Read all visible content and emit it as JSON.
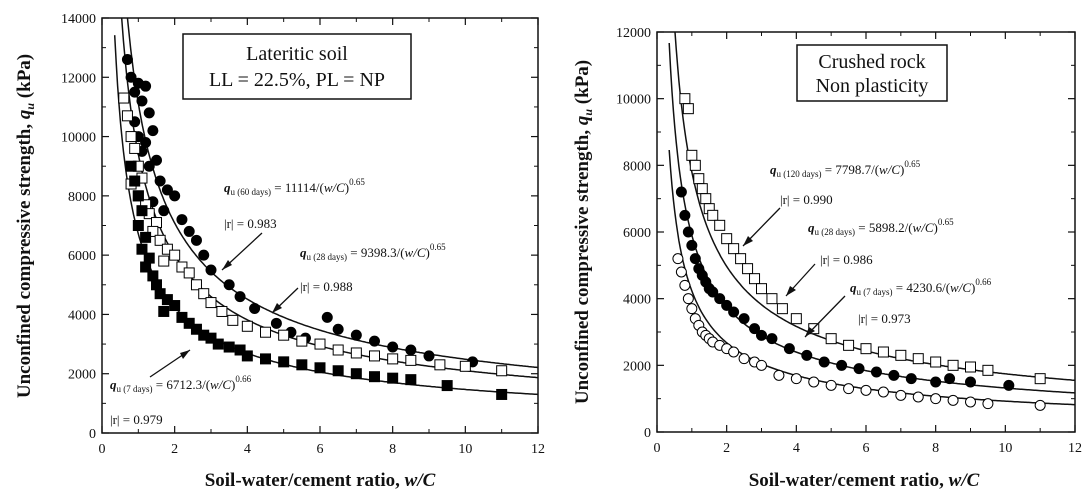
{
  "chart_data": [
    {
      "type": "scatter",
      "panel": "left",
      "legend_box": [
        "Lateritic soil",
        "LL = 22.5%, PL = NP"
      ],
      "xlabel_main": "Soil-water/cement ratio, ",
      "xlabel_var": "w/C",
      "ylabel_main": "Unconfined compressive strength, ",
      "ylabel_var": "q",
      "ylabel_sub": "u",
      "ylabel_unit": " (kPa)",
      "xlim": [
        0,
        12
      ],
      "ylim": [
        0,
        14000
      ],
      "xticks": [
        "0",
        "2",
        "4",
        "6",
        "8",
        "10",
        "12"
      ],
      "yticks": [
        "0",
        "2000",
        "4000",
        "6000",
        "8000",
        "10000",
        "12000",
        "14000"
      ],
      "curves": [
        {
          "age": "60 days",
          "a": 11114,
          "b": 0.65
        },
        {
          "age": "28 days",
          "a": 9398.3,
          "b": 0.65
        },
        {
          "age": "7 days",
          "a": 6712.3,
          "b": 0.66
        }
      ],
      "annotations": [
        {
          "q": "q",
          "sub": "u (60 days)",
          "eq": " = 11114/(",
          "var": "w/C",
          "close": ")",
          "exp": "0.65",
          "r": "|r| = 0.983"
        },
        {
          "q": "q",
          "sub": "u (28 days)",
          "eq": " = 9398.3/(",
          "var": "w/C",
          "close": ")",
          "exp": "0.65",
          "r": "|r| = 0.988"
        },
        {
          "q": "q",
          "sub": "u (7 days)",
          "eq": " = 6712.3/(",
          "var": "w/C",
          "close": ")",
          "exp": "0.66",
          "r": "|r| = 0.979"
        }
      ],
      "series": [
        {
          "marker": "filled-circle",
          "points": [
            [
              0.7,
              12600
            ],
            [
              0.8,
              12000
            ],
            [
              0.9,
              11500
            ],
            [
              1.0,
              11800
            ],
            [
              1.1,
              11200
            ],
            [
              1.2,
              11700
            ],
            [
              1.3,
              10800
            ],
            [
              1.4,
              10200
            ],
            [
              0.9,
              10500
            ],
            [
              1.0,
              10000
            ],
            [
              1.1,
              9500
            ],
            [
              1.2,
              9800
            ],
            [
              1.5,
              9200
            ],
            [
              1.3,
              9000
            ],
            [
              1.6,
              8500
            ],
            [
              1.8,
              8200
            ],
            [
              2.0,
              8000
            ],
            [
              1.4,
              7800
            ],
            [
              1.7,
              7500
            ],
            [
              2.2,
              7200
            ],
            [
              2.4,
              6800
            ],
            [
              2.6,
              6500
            ],
            [
              2.8,
              6000
            ],
            [
              3.0,
              5500
            ],
            [
              3.5,
              5000
            ],
            [
              3.8,
              4600
            ],
            [
              4.2,
              4200
            ],
            [
              4.8,
              3700
            ],
            [
              5.2,
              3400
            ],
            [
              5.6,
              3200
            ],
            [
              6.2,
              3900
            ],
            [
              6.5,
              3500
            ],
            [
              7.0,
              3300
            ],
            [
              7.5,
              3100
            ],
            [
              8.0,
              2900
            ],
            [
              8.5,
              2800
            ],
            [
              9.0,
              2600
            ],
            [
              10.2,
              2400
            ]
          ]
        },
        {
          "marker": "open-square",
          "points": [
            [
              0.6,
              11300
            ],
            [
              0.7,
              10700
            ],
            [
              0.8,
              10000
            ],
            [
              0.9,
              9600
            ],
            [
              1.0,
              9000
            ],
            [
              1.1,
              8600
            ],
            [
              0.8,
              8400
            ],
            [
              1.0,
              8000
            ],
            [
              1.2,
              7700
            ],
            [
              1.3,
              7400
            ],
            [
              1.5,
              7100
            ],
            [
              1.4,
              6800
            ],
            [
              1.6,
              6500
            ],
            [
              1.8,
              6200
            ],
            [
              2.0,
              6000
            ],
            [
              1.7,
              5800
            ],
            [
              2.2,
              5600
            ],
            [
              2.4,
              5400
            ],
            [
              2.6,
              5000
            ],
            [
              2.8,
              4700
            ],
            [
              3.0,
              4400
            ],
            [
              3.3,
              4100
            ],
            [
              3.6,
              3800
            ],
            [
              4.0,
              3600
            ],
            [
              4.5,
              3400
            ],
            [
              5.0,
              3300
            ],
            [
              5.5,
              3100
            ],
            [
              6.0,
              3000
            ],
            [
              6.5,
              2800
            ],
            [
              7.0,
              2700
            ],
            [
              7.5,
              2600
            ],
            [
              8.0,
              2500
            ],
            [
              8.5,
              2450
            ],
            [
              9.3,
              2300
            ],
            [
              10.0,
              2250
            ],
            [
              11.0,
              2100
            ]
          ]
        },
        {
          "marker": "filled-square",
          "points": [
            [
              0.8,
              9000
            ],
            [
              0.9,
              8500
            ],
            [
              1.0,
              8000
            ],
            [
              1.1,
              7500
            ],
            [
              1.0,
              7000
            ],
            [
              1.2,
              6600
            ],
            [
              1.1,
              6200
            ],
            [
              1.3,
              5900
            ],
            [
              1.2,
              5600
            ],
            [
              1.4,
              5300
            ],
            [
              1.5,
              5000
            ],
            [
              1.6,
              4700
            ],
            [
              1.8,
              4500
            ],
            [
              2.0,
              4300
            ],
            [
              1.7,
              4100
            ],
            [
              2.2,
              3900
            ],
            [
              2.4,
              3700
            ],
            [
              2.6,
              3500
            ],
            [
              2.8,
              3300
            ],
            [
              3.0,
              3200
            ],
            [
              3.2,
              3000
            ],
            [
              3.5,
              2900
            ],
            [
              3.8,
              2800
            ],
            [
              4.0,
              2600
            ],
            [
              4.5,
              2500
            ],
            [
              5.0,
              2400
            ],
            [
              5.5,
              2300
            ],
            [
              6.0,
              2200
            ],
            [
              6.5,
              2100
            ],
            [
              7.0,
              2000
            ],
            [
              7.5,
              1900
            ],
            [
              8.0,
              1850
            ],
            [
              8.5,
              1800
            ],
            [
              9.5,
              1600
            ],
            [
              11.0,
              1300
            ]
          ]
        }
      ]
    },
    {
      "type": "scatter",
      "panel": "right",
      "legend_box": [
        "Crushed rock",
        "Non plasticity"
      ],
      "xlabel_main": "Soil-water/cement ratio, ",
      "xlabel_var": "w/C",
      "ylabel_main": "Unconfined compressive strength, ",
      "ylabel_var": "q",
      "ylabel_sub": "u",
      "ylabel_unit": " (kPa)",
      "xlim": [
        0,
        12
      ],
      "ylim": [
        0,
        12000
      ],
      "xticks": [
        "0",
        "2",
        "4",
        "6",
        "8",
        "10",
        "12"
      ],
      "yticks": [
        "0",
        "2000",
        "4000",
        "6000",
        "8000",
        "10000",
        "12000"
      ],
      "curves": [
        {
          "age": "120 days",
          "a": 7798.7,
          "b": 0.65
        },
        {
          "age": "28 days",
          "a": 5898.2,
          "b": 0.65
        },
        {
          "age": "7 days",
          "a": 4230.6,
          "b": 0.66
        }
      ],
      "annotations": [
        {
          "q": "q",
          "sub": "u (120 days)",
          "eq": " = 7798.7/(",
          "var": "w/C",
          "close": ")",
          "exp": "0.65",
          "r": "|r| = 0.990"
        },
        {
          "q": "q",
          "sub": "u (28 days)",
          "eq": " = 5898.2/(",
          "var": "w/C",
          "close": ")",
          "exp": "0.65",
          "r": "|r| = 0.986"
        },
        {
          "q": "q",
          "sub": "u (7 days)",
          "eq": " = 4230.6/(",
          "var": "w/C",
          "close": ")",
          "exp": "0.66",
          "r": "|r| = 0.973"
        }
      ],
      "series": [
        {
          "marker": "open-square",
          "points": [
            [
              0.8,
              10000
            ],
            [
              0.9,
              9700
            ],
            [
              1.0,
              8300
            ],
            [
              1.1,
              8000
            ],
            [
              1.2,
              7600
            ],
            [
              1.3,
              7300
            ],
            [
              1.4,
              7000
            ],
            [
              1.5,
              6700
            ],
            [
              1.6,
              6500
            ],
            [
              1.8,
              6200
            ],
            [
              2.0,
              5800
            ],
            [
              2.2,
              5500
            ],
            [
              2.4,
              5200
            ],
            [
              2.6,
              4900
            ],
            [
              2.8,
              4600
            ],
            [
              3.0,
              4300
            ],
            [
              3.3,
              4000
            ],
            [
              3.6,
              3700
            ],
            [
              4.0,
              3400
            ],
            [
              4.5,
              3100
            ],
            [
              5.0,
              2800
            ],
            [
              5.5,
              2600
            ],
            [
              6.0,
              2500
            ],
            [
              6.5,
              2400
            ],
            [
              7.0,
              2300
            ],
            [
              7.5,
              2200
            ],
            [
              8.0,
              2100
            ],
            [
              8.5,
              2000
            ],
            [
              9.0,
              1950
            ],
            [
              9.5,
              1850
            ],
            [
              11.0,
              1600
            ]
          ]
        },
        {
          "marker": "filled-circle",
          "points": [
            [
              0.7,
              7200
            ],
            [
              0.8,
              6500
            ],
            [
              0.9,
              6000
            ],
            [
              1.0,
              5600
            ],
            [
              1.1,
              5200
            ],
            [
              1.2,
              4900
            ],
            [
              1.3,
              4700
            ],
            [
              1.4,
              4500
            ],
            [
              1.5,
              4300
            ],
            [
              1.6,
              4200
            ],
            [
              1.8,
              4000
            ],
            [
              2.0,
              3800
            ],
            [
              2.2,
              3600
            ],
            [
              2.5,
              3400
            ],
            [
              2.8,
              3100
            ],
            [
              3.0,
              2900
            ],
            [
              3.3,
              2800
            ],
            [
              3.8,
              2500
            ],
            [
              4.3,
              2300
            ],
            [
              4.8,
              2100
            ],
            [
              5.3,
              2000
            ],
            [
              5.8,
              1900
            ],
            [
              6.3,
              1800
            ],
            [
              6.8,
              1700
            ],
            [
              7.3,
              1600
            ],
            [
              8.0,
              1500
            ],
            [
              8.4,
              1600
            ],
            [
              9.0,
              1500
            ],
            [
              10.1,
              1400
            ]
          ]
        },
        {
          "marker": "open-circle",
          "points": [
            [
              0.6,
              5200
            ],
            [
              0.7,
              4800
            ],
            [
              0.8,
              4400
            ],
            [
              0.9,
              4000
            ],
            [
              1.0,
              3700
            ],
            [
              1.1,
              3400
            ],
            [
              1.2,
              3200
            ],
            [
              1.3,
              3000
            ],
            [
              1.4,
              2900
            ],
            [
              1.5,
              2800
            ],
            [
              1.6,
              2700
            ],
            [
              1.8,
              2600
            ],
            [
              2.0,
              2500
            ],
            [
              2.2,
              2400
            ],
            [
              2.5,
              2200
            ],
            [
              2.8,
              2100
            ],
            [
              3.0,
              2000
            ],
            [
              3.5,
              1700
            ],
            [
              4.0,
              1600
            ],
            [
              4.5,
              1500
            ],
            [
              5.0,
              1400
            ],
            [
              5.5,
              1300
            ],
            [
              6.0,
              1250
            ],
            [
              6.5,
              1200
            ],
            [
              7.0,
              1100
            ],
            [
              7.5,
              1050
            ],
            [
              8.0,
              1000
            ],
            [
              8.5,
              950
            ],
            [
              9.0,
              900
            ],
            [
              9.5,
              850
            ],
            [
              11.0,
              800
            ]
          ]
        }
      ]
    }
  ]
}
